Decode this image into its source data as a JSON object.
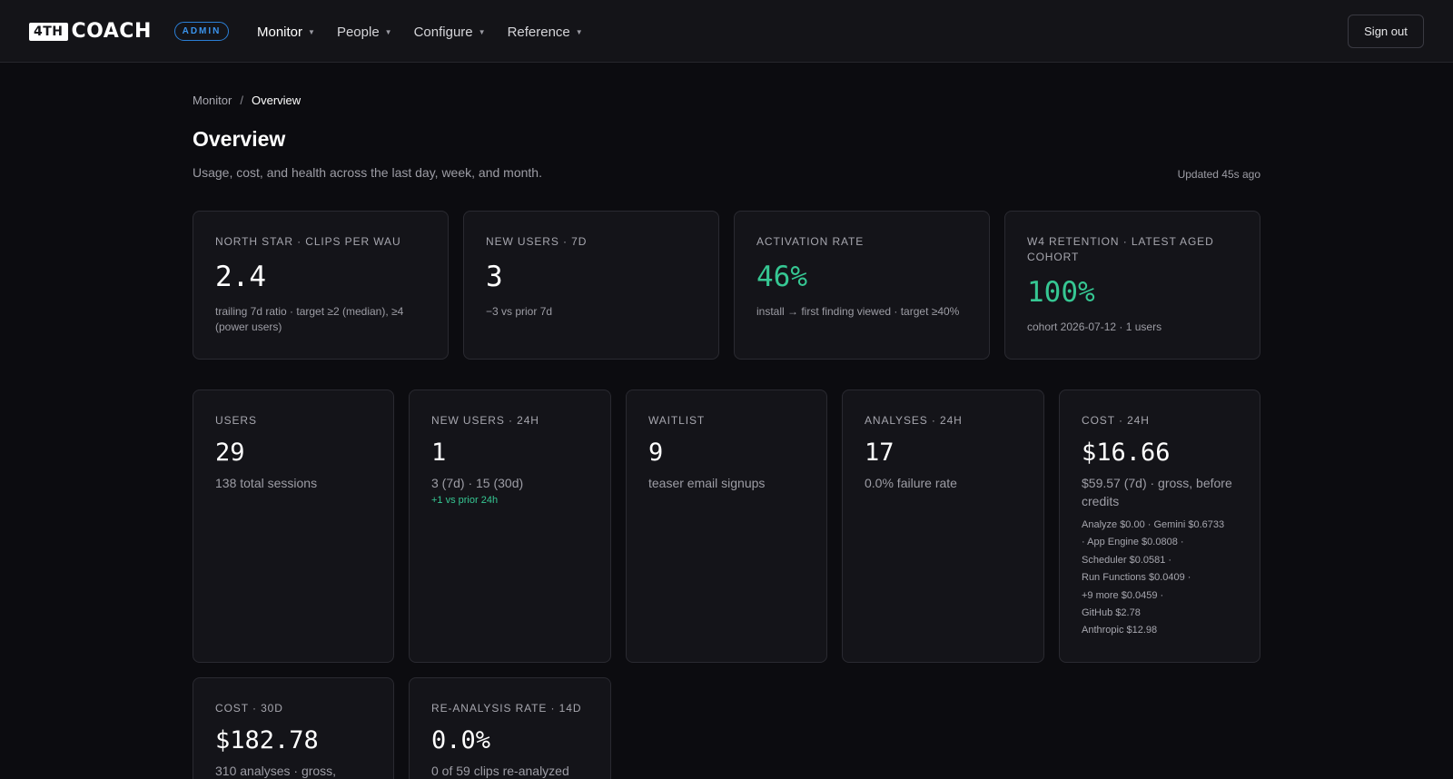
{
  "brand": {
    "logo_box": "4TH",
    "logo_word": "COACH",
    "badge": "ADMIN"
  },
  "nav": [
    {
      "label": "Monitor",
      "active": true
    },
    {
      "label": "People",
      "active": false
    },
    {
      "label": "Configure",
      "active": false
    },
    {
      "label": "Reference",
      "active": false
    }
  ],
  "signout_label": "Sign out",
  "breadcrumb": {
    "parent": "Monitor",
    "sep": "/",
    "current": "Overview"
  },
  "page": {
    "title": "Overview",
    "subtitle": "Usage, cost, and health across the last day, week, and month.",
    "updated": "Updated 45s ago"
  },
  "kpis": [
    {
      "label": "NORTH STAR · CLIPS PER WAU",
      "value": "2.4",
      "desc": "trailing 7d ratio · target ≥2 (median), ≥4 (power users)"
    },
    {
      "label": "NEW USERS · 7D",
      "value": "3",
      "desc": "−3 vs prior 7d"
    },
    {
      "label": "ACTIVATION RATE",
      "value": "46%",
      "desc": "install → first finding viewed · target ≥40%"
    },
    {
      "label": "W4 RETENTION · LATEST AGED COHORT",
      "value": "100%",
      "desc": "cohort 2026-07-12 · 1 users"
    }
  ],
  "stats": [
    {
      "label": "USERS",
      "value": "29",
      "desc": "138 total sessions"
    },
    {
      "label": "NEW USERS · 24H",
      "value": "1",
      "desc": "3 (7d) · 15 (30d)",
      "delta": "+1 vs prior 24h"
    },
    {
      "label": "WAITLIST",
      "value": "9",
      "desc": "teaser email signups"
    },
    {
      "label": "ANALYSES · 24H",
      "value": "17",
      "desc": "0.0% failure rate"
    },
    {
      "label": "COST · 24H",
      "value": "$16.66",
      "desc": "$59.57 (7d) · gross, before credits",
      "breakdown": [
        "Analyze $0.00 · Gemini $0.6733",
        "· App Engine $0.0808 ·",
        "Scheduler $0.0581 ·",
        "Run Functions $0.0409 ·",
        "+9 more $0.0459 ·",
        "GitHub $2.78",
        "Anthropic $12.98"
      ]
    }
  ],
  "stats2": [
    {
      "label": "COST · 30D",
      "value": "$182.78",
      "desc": "310 analyses · gross,"
    },
    {
      "label": "RE-ANALYSIS RATE · 14D",
      "value": "0.0%",
      "desc": "0 of 59 clips re-analyzed"
    }
  ],
  "colors": {
    "accent_green": "#36c793",
    "badge_blue": "#3a93ec",
    "background": "#0c0c10"
  }
}
